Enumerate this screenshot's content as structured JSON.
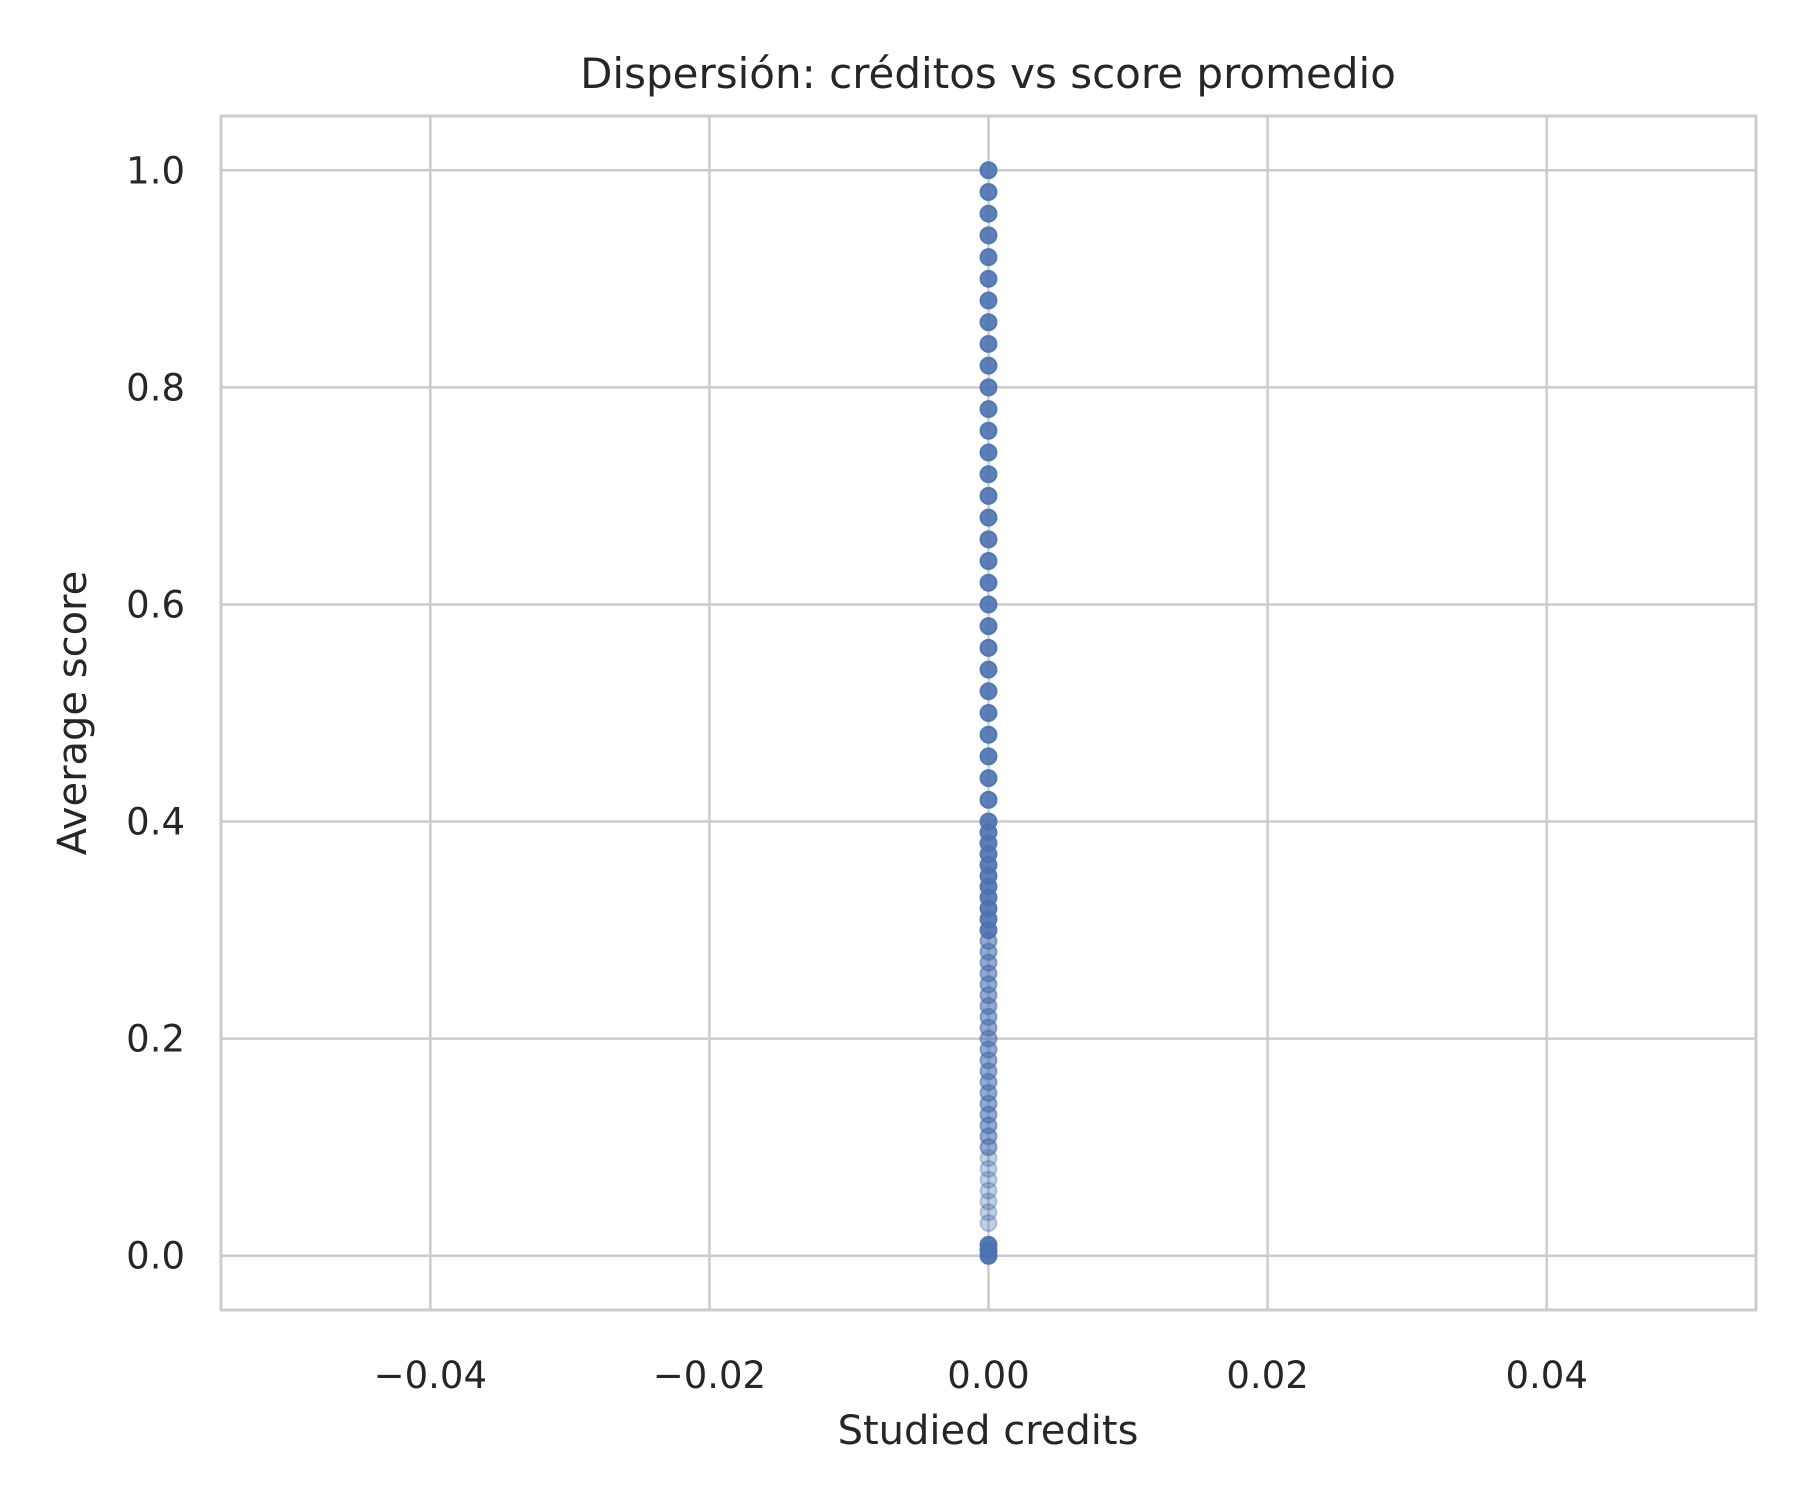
{
  "chart_data": {
    "type": "scatter",
    "title": "Dispersión: créditos vs score promedio",
    "xlabel": "Studied credits",
    "ylabel": "Average score",
    "xlim": [
      -0.055,
      0.055
    ],
    "ylim": [
      -0.05,
      1.05
    ],
    "xticks": [
      -0.04,
      -0.02,
      0.0,
      0.02,
      0.04
    ],
    "xtick_labels": [
      "−0.04",
      "−0.02",
      "0.00",
      "0.02",
      "0.04"
    ],
    "yticks": [
      0.0,
      0.2,
      0.4,
      0.6,
      0.8,
      1.0
    ],
    "ytick_labels": [
      "0.0",
      "0.2",
      "0.4",
      "0.6",
      "0.8",
      "1.0"
    ],
    "grid": true,
    "marker_color": "#4c72b0",
    "series": [
      {
        "x_constant": 0.0,
        "y": [
          0.0,
          0.005,
          0.01,
          0.03,
          0.04,
          0.05,
          0.06,
          0.07,
          0.08,
          0.09,
          0.1,
          0.11,
          0.12,
          0.13,
          0.14,
          0.15,
          0.16,
          0.17,
          0.18,
          0.19,
          0.2,
          0.21,
          0.22,
          0.23,
          0.24,
          0.25,
          0.26,
          0.27,
          0.28,
          0.29,
          0.3,
          0.31,
          0.32,
          0.33,
          0.34,
          0.35,
          0.36,
          0.37,
          0.38,
          0.39,
          0.4,
          0.42,
          0.44,
          0.46,
          0.48,
          0.5,
          0.52,
          0.54,
          0.56,
          0.58,
          0.6,
          0.62,
          0.64,
          0.66,
          0.68,
          0.7,
          0.72,
          0.74,
          0.76,
          0.78,
          0.8,
          0.82,
          0.84,
          0.86,
          0.88,
          0.9,
          0.92,
          0.94,
          0.96,
          0.98,
          1.0
        ]
      }
    ]
  }
}
